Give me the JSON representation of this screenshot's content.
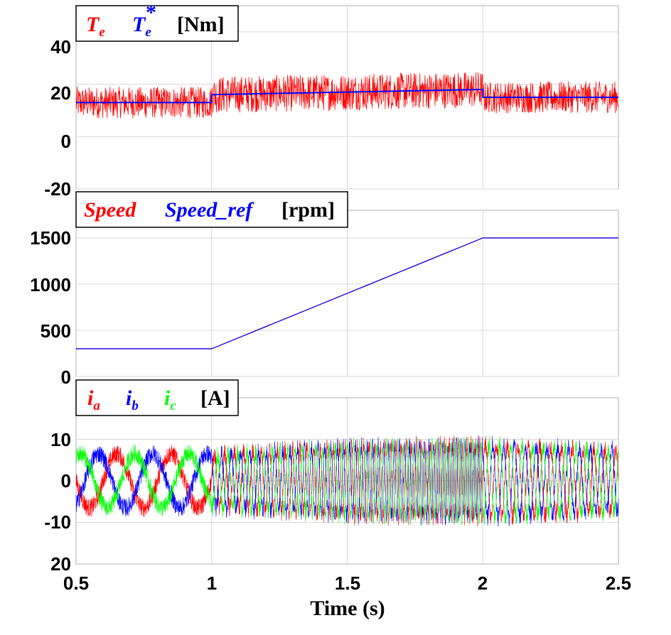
{
  "x_axis": {
    "label": "Time (s)"
  },
  "chart_data": [
    {
      "type": "line",
      "legend": {
        "entries": [
          {
            "symbol": "T",
            "subscript": "e",
            "superscript": "",
            "color": "#ff0000"
          },
          {
            "symbol": "T",
            "subscript": "e",
            "superscript": "*",
            "color": "#0000ff"
          }
        ],
        "unit": "[Nm]"
      },
      "x_ticks": [
        "0.5",
        "1",
        "1.5",
        "2",
        "2.5"
      ],
      "y_ticks": [
        "40",
        "20",
        "0",
        "-20"
      ],
      "xlim": [
        0.5,
        2.5
      ],
      "ylim": [
        -20,
        50
      ],
      "grid": true,
      "series": [
        {
          "color": "#ff0000",
          "band": {
            "x": [
              0.5,
              1.0,
              1.0,
              1.5,
              2.0,
              2.0,
              2.5
            ],
            "center": [
              13,
              13,
              16,
              17,
              18,
              15,
              15
            ],
            "halfwidth": [
              6,
              6,
              7,
              7,
              7,
              6,
              6
            ]
          }
        },
        {
          "color": "#0000ff",
          "x": [
            0.5,
            1.0,
            1.0,
            1.5,
            2.0,
            2.0,
            2.5
          ],
          "y": [
            13,
            13,
            16,
            17,
            18,
            15,
            15
          ]
        }
      ]
    },
    {
      "type": "line",
      "legend": {
        "entries": [
          {
            "text": "Speed",
            "color": "#ff0000"
          },
          {
            "text": "Speed_ref",
            "color": "#0000ff"
          }
        ],
        "unit": "[rpm]"
      },
      "x_ticks": [
        "0.5",
        "1",
        "1.5",
        "2",
        "2.5"
      ],
      "y_ticks": [
        "1500",
        "1000",
        "500",
        "0"
      ],
      "xlim": [
        0.5,
        2.5
      ],
      "ylim": [
        0,
        1800
      ],
      "grid": true,
      "series": [
        {
          "color": "#ff0000",
          "x": [
            0.5,
            1.0,
            2.0,
            2.5
          ],
          "y": [
            300,
            300,
            1500,
            1500
          ]
        },
        {
          "color": "#0000ff",
          "x": [
            0.5,
            1.0,
            2.0,
            2.5
          ],
          "y": [
            300,
            300,
            1500,
            1500
          ]
        }
      ]
    },
    {
      "type": "line",
      "legend": {
        "entries": [
          {
            "symbol": "i",
            "subscript": "a",
            "color": "#ff0000"
          },
          {
            "symbol": "i",
            "subscript": "b",
            "color": "#0000ff"
          },
          {
            "symbol": "i",
            "subscript": "c",
            "color": "#00ff00"
          }
        ],
        "unit": "[A]"
      },
      "x_ticks": [
        "0.5",
        "1",
        "1.5",
        "2",
        "2.5"
      ],
      "y_ticks": [
        "10",
        "0",
        "-10",
        "20"
      ],
      "xlim": [
        0.5,
        2.5
      ],
      "ylim": [
        -20,
        20
      ],
      "grid": true,
      "series": [
        {
          "color": "#ff0000",
          "phase_deg": 0,
          "amplitude": {
            "x": [
              0.5,
              1.0,
              1.5,
              2.0,
              2.5
            ],
            "y": [
              6.5,
              6.5,
              8.5,
              9,
              7.5
            ]
          }
        },
        {
          "color": "#0000ff",
          "phase_deg": 120,
          "amplitude": {
            "x": [
              0.5,
              1.0,
              1.5,
              2.0,
              2.5
            ],
            "y": [
              6.5,
              6.5,
              8.5,
              9,
              7.5
            ]
          }
        },
        {
          "color": "#00ff00",
          "phase_deg": 240,
          "amplitude": {
            "x": [
              0.5,
              1.0,
              1.5,
              2.0,
              2.5
            ],
            "y": [
              6.5,
              6.5,
              8.5,
              9,
              7.5
            ]
          }
        }
      ]
    }
  ]
}
